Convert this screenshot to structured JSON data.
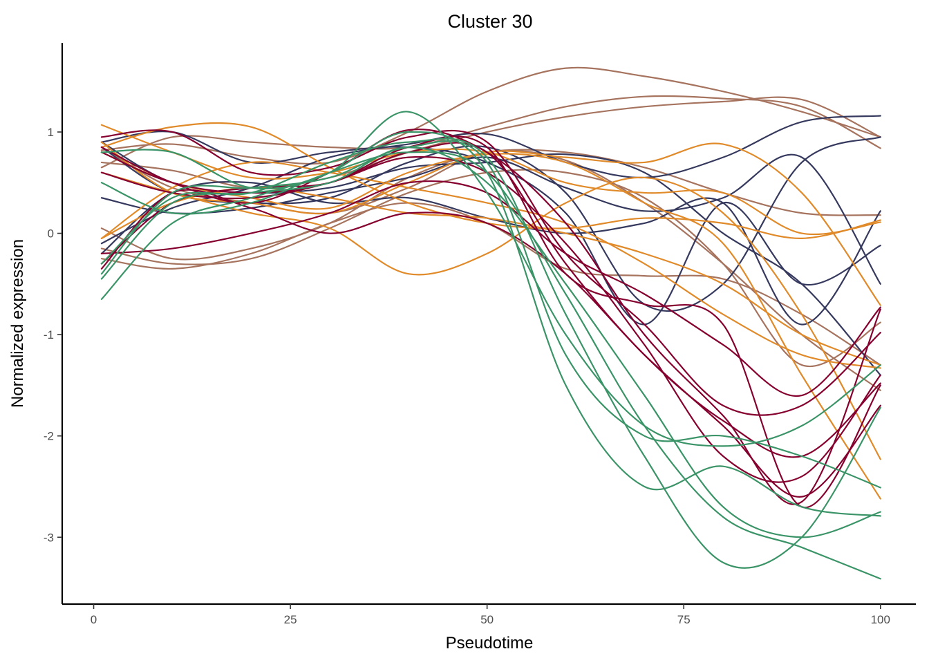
{
  "chart_data": {
    "type": "line",
    "title": "Cluster 30",
    "xlabel": "Pseudotime",
    "ylabel": "Normalized expression",
    "xlim": [
      -4,
      104.5
    ],
    "ylim": [
      -3.66,
      1.88
    ],
    "xticks": [
      0,
      25,
      50,
      75,
      100
    ],
    "yticks": [
      1,
      0,
      -1,
      -2,
      -3
    ],
    "xtick_labels": [
      "0",
      "25",
      "50",
      "75",
      "100"
    ],
    "ytick_labels": [
      "1",
      "0",
      "-1",
      "-2",
      "-3"
    ],
    "grid": false,
    "legend": "none",
    "colors": {
      "brown": "#a6735e",
      "navy": "#36395e",
      "orange": "#e08a2a",
      "crimson": "#85002f",
      "green": "#3a9467"
    },
    "x": [
      1,
      10,
      20,
      30,
      40,
      50,
      60,
      70,
      80,
      90,
      100
    ],
    "series": [
      {
        "color": "brown",
        "values": [
          0.82,
          0.88,
          0.75,
          0.7,
          1.0,
          1.4,
          1.63,
          1.55,
          1.4,
          1.2,
          0.95
        ]
      },
      {
        "color": "brown",
        "values": [
          0.65,
          0.95,
          0.9,
          0.85,
          0.85,
          1.05,
          1.25,
          1.35,
          1.33,
          1.25,
          0.84
        ]
      },
      {
        "color": "brown",
        "values": [
          0.7,
          0.62,
          0.45,
          0.55,
          0.8,
          1.0,
          1.15,
          1.25,
          1.3,
          1.32,
          0.95
        ]
      },
      {
        "color": "brown",
        "values": [
          0.05,
          -0.25,
          -0.15,
          0.1,
          0.55,
          0.8,
          0.8,
          0.65,
          0.4,
          0.2,
          0.18
        ]
      },
      {
        "color": "brown",
        "values": [
          -0.15,
          -0.3,
          -0.25,
          0.05,
          0.4,
          0.6,
          0.6,
          0.35,
          -0.3,
          -1.3,
          -0.88
        ]
      },
      {
        "color": "brown",
        "values": [
          -0.25,
          -0.35,
          -0.2,
          0.1,
          0.3,
          0.1,
          -0.35,
          -0.42,
          -0.45,
          -0.8,
          -1.3
        ]
      },
      {
        "color": "brown",
        "values": [
          0.85,
          0.45,
          0.3,
          0.2,
          0.45,
          0.8,
          0.72,
          0.3,
          -0.3,
          -1.0,
          -1.55
        ]
      },
      {
        "color": "navy",
        "values": [
          -0.1,
          0.25,
          0.45,
          0.75,
          0.88,
          0.98,
          0.7,
          0.55,
          0.75,
          1.1,
          1.16
        ]
      },
      {
        "color": "navy",
        "values": [
          0.35,
          0.2,
          0.25,
          0.4,
          0.55,
          0.75,
          0.45,
          0.22,
          0.35,
          0.75,
          -0.5
        ]
      },
      {
        "color": "navy",
        "values": [
          0.9,
          0.5,
          0.4,
          0.45,
          0.65,
          0.7,
          0.78,
          0.6,
          0.0,
          -0.5,
          -1.4
        ]
      },
      {
        "color": "navy",
        "values": [
          0.85,
          0.4,
          0.3,
          0.35,
          0.7,
          0.85,
          0.4,
          -0.7,
          -0.5,
          0.7,
          0.95
        ]
      },
      {
        "color": "navy",
        "values": [
          -0.2,
          0.4,
          0.5,
          0.3,
          0.35,
          0.15,
          0.0,
          0.1,
          0.3,
          -0.9,
          0.22
        ]
      },
      {
        "color": "navy",
        "values": [
          0.9,
          1.0,
          0.7,
          0.8,
          0.85,
          0.7,
          0.2,
          -0.9,
          0.3,
          -0.5,
          -0.12
        ]
      },
      {
        "color": "orange",
        "values": [
          1.07,
          0.8,
          0.55,
          0.6,
          0.8,
          0.8,
          0.5,
          0.4,
          0.4,
          0.0,
          0.11
        ]
      },
      {
        "color": "orange",
        "values": [
          0.85,
          1.05,
          1.05,
          0.65,
          0.3,
          0.1,
          0.05,
          0.15,
          0.1,
          -0.05,
          0.13
        ]
      },
      {
        "color": "orange",
        "values": [
          0.9,
          0.4,
          0.3,
          0.2,
          0.5,
          0.8,
          0.75,
          0.7,
          0.88,
          0.4,
          -0.71
        ]
      },
      {
        "color": "orange",
        "values": [
          -0.05,
          0.3,
          0.45,
          0.35,
          0.2,
          0.15,
          0.0,
          -0.2,
          -0.5,
          -1.0,
          -1.3
        ]
      },
      {
        "color": "orange",
        "values": [
          0.6,
          0.4,
          0.2,
          0.05,
          -0.4,
          -0.2,
          0.3,
          0.55,
          0.2,
          -0.8,
          -2.23
        ]
      },
      {
        "color": "orange",
        "values": [
          -0.05,
          0.45,
          0.7,
          0.6,
          0.45,
          0.3,
          0.1,
          -0.3,
          -0.8,
          -1.2,
          -1.33
        ]
      },
      {
        "color": "orange",
        "values": [
          0.8,
          0.5,
          0.35,
          0.25,
          0.6,
          0.78,
          0.7,
          0.3,
          -0.1,
          -1.4,
          -2.62
        ]
      },
      {
        "color": "crimson",
        "values": [
          0.95,
          1.0,
          0.6,
          0.65,
          0.95,
          0.9,
          -0.2,
          -0.9,
          -1.7,
          -1.7,
          -0.98
        ]
      },
      {
        "color": "crimson",
        "values": [
          0.8,
          0.5,
          0.4,
          0.5,
          0.8,
          0.8,
          -0.3,
          -1.2,
          -1.85,
          -2.2,
          -1.48
        ]
      },
      {
        "color": "crimson",
        "values": [
          -0.2,
          -0.15,
          0.0,
          0.2,
          0.5,
          0.4,
          -0.2,
          -0.6,
          -1.1,
          -1.6,
          -0.73
        ]
      },
      {
        "color": "crimson",
        "values": [
          -0.3,
          0.3,
          0.45,
          0.5,
          0.85,
          0.85,
          -0.4,
          -0.7,
          -0.9,
          -2.7,
          -1.5
        ]
      },
      {
        "color": "crimson",
        "values": [
          0.6,
          0.4,
          0.35,
          0.5,
          0.75,
          0.6,
          -0.1,
          -1.1,
          -2.2,
          -2.4,
          -1.4
        ]
      },
      {
        "color": "crimson",
        "values": [
          -0.35,
          0.4,
          0.25,
          0.0,
          0.2,
          0.1,
          -0.4,
          -1.2,
          -1.9,
          -2.6,
          -1.7
        ]
      },
      {
        "color": "crimson",
        "values": [
          0.85,
          0.5,
          0.3,
          0.6,
          1.02,
          0.8,
          0.1,
          -1.0,
          -1.8,
          -2.65,
          -0.75
        ]
      },
      {
        "color": "green",
        "values": [
          0.8,
          0.8,
          0.45,
          0.6,
          1.2,
          0.4,
          -1.0,
          -1.9,
          -2.1,
          -1.9,
          -1.3
        ]
      },
      {
        "color": "green",
        "values": [
          -0.4,
          0.4,
          0.45,
          0.55,
          0.85,
          0.7,
          -1.2,
          -2.0,
          -2.0,
          -2.2,
          -2.51
        ]
      },
      {
        "color": "green",
        "values": [
          -0.65,
          0.1,
          0.35,
          0.6,
          1.0,
          0.6,
          -1.5,
          -2.5,
          -2.3,
          -2.7,
          -2.79
        ]
      },
      {
        "color": "green",
        "values": [
          -0.45,
          0.3,
          0.4,
          0.5,
          0.85,
          0.5,
          -0.5,
          -1.6,
          -2.7,
          -3.0,
          -2.75
        ]
      },
      {
        "color": "green",
        "values": [
          -0.3,
          0.35,
          0.4,
          0.7,
          0.9,
          0.75,
          -0.8,
          -2.2,
          -3.25,
          -3.0,
          -1.72
        ]
      },
      {
        "color": "green",
        "values": [
          0.5,
          0.2,
          0.3,
          0.6,
          0.8,
          0.6,
          -0.6,
          -1.9,
          -2.8,
          -3.1,
          -3.41
        ]
      }
    ]
  }
}
